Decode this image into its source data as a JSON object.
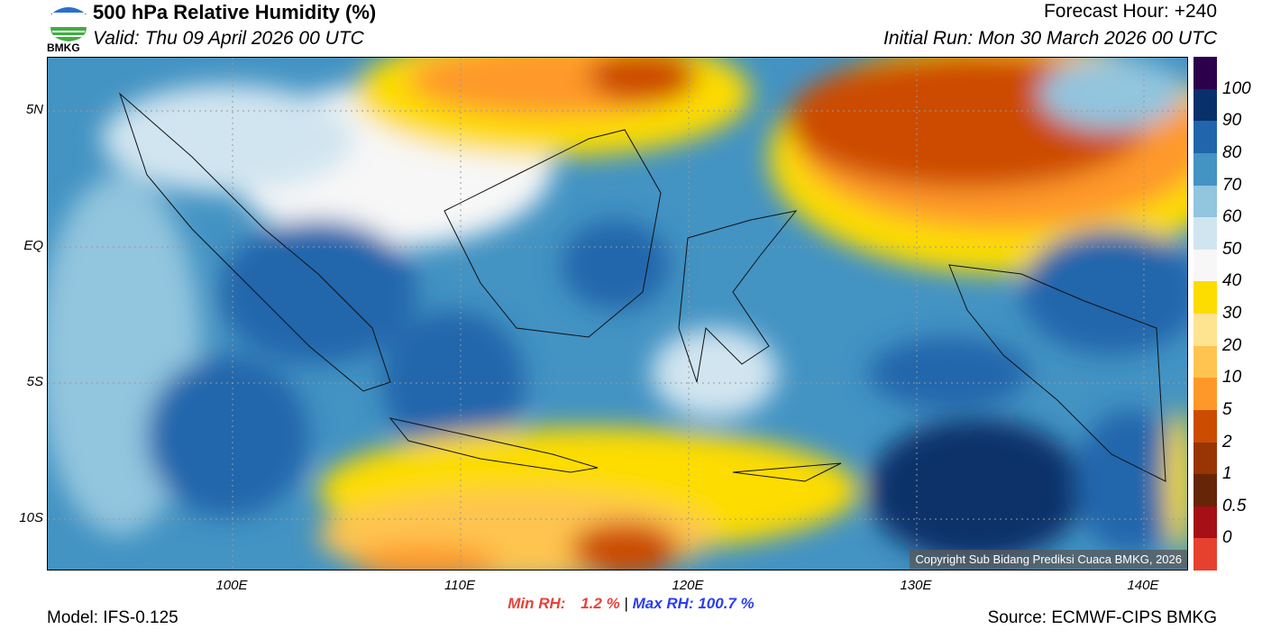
{
  "header": {
    "title": "500 hPa Relative Humidity (%)",
    "valid": "Valid: Thu 09 April 2026 00 UTC",
    "forecast_hour": "Forecast Hour: +240",
    "initial_run": "Initial Run: Mon 30 March 2026 00 UTC",
    "logo_text": "BMKG"
  },
  "axes": {
    "lat_labels": [
      "5N",
      "EQ",
      "5S",
      "10S"
    ],
    "lon_labels": [
      "100E",
      "110E",
      "120E",
      "130E",
      "140E"
    ]
  },
  "colorbar": {
    "labels": [
      "100",
      "90",
      "80",
      "70",
      "60",
      "50",
      "40",
      "30",
      "20",
      "10",
      "5",
      "2",
      "1",
      "0.5",
      "0"
    ],
    "colors": [
      "#2d004b",
      "#08306b",
      "#2166ac",
      "#4393c3",
      "#92c5de",
      "#d1e5f0",
      "#f7f7f7",
      "#fddc00",
      "#fee391",
      "#fec44f",
      "#fe9929",
      "#cc4c02",
      "#993404",
      "#662506",
      "#a50f15",
      "#e6412f"
    ]
  },
  "footer": {
    "copyright": "Copyright Sub Bidang Prediksi Cuaca BMKG, 2026",
    "min_label": "Min RH:",
    "min_value": "1.2 %",
    "separator": "|",
    "max_label": "Max RH:",
    "max_value": "100.7 %",
    "model": "Model: IFS-0.125",
    "source": "Source: ECMWF-CIPS BMKG"
  }
}
